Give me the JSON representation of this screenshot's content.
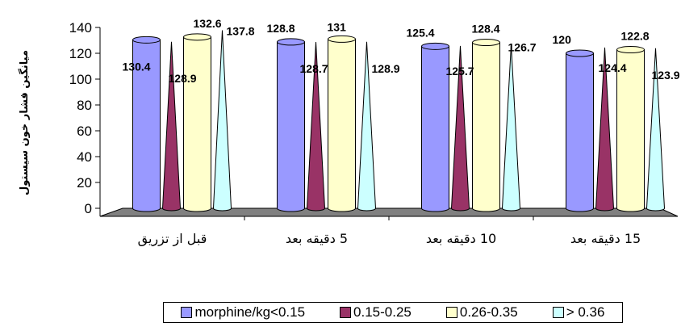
{
  "chart_data": {
    "type": "bar",
    "title": "",
    "xlabel": "",
    "ylabel": "میانگین فشار خون سیستول",
    "ylim": [
      0,
      140
    ],
    "yticks": [
      "0",
      "20",
      "40",
      "60",
      "80",
      "100",
      "120",
      "140"
    ],
    "categories": [
      "قبل از تزریق",
      "5 دقیقه بعد",
      "10 دقیقه بعد",
      "15 دقیقه بعد"
    ],
    "series": [
      {
        "name": "morphine/kg<0.15",
        "values": [
          130.4,
          128.8,
          125.4,
          120
        ],
        "labels": [
          "130.4",
          "128.8",
          "125.4",
          "120"
        ],
        "color": "#9999ff",
        "shape": "cylinder"
      },
      {
        "name": "0.15-0.25",
        "values": [
          128.9,
          128.7,
          125.7,
          124.4
        ],
        "labels": [
          "128.9",
          "128.7",
          "125.7",
          "124.4"
        ],
        "color": "#993366",
        "shape": "cone"
      },
      {
        "name": "0.26-0.35",
        "values": [
          132.6,
          131,
          128.4,
          122.8
        ],
        "labels": [
          "132.6",
          "131",
          "128.4",
          "122.8"
        ],
        "color": "#ffffcc",
        "shape": "cylinder"
      },
      {
        "name": "> 0.36",
        "values": [
          137.8,
          128.9,
          126.7,
          123.9
        ],
        "labels": [
          "137.8",
          "128.9",
          "126.7",
          "123.9"
        ],
        "color": "#ccffff",
        "shape": "cone"
      }
    ],
    "legend_position": "bottom",
    "grid": false
  }
}
